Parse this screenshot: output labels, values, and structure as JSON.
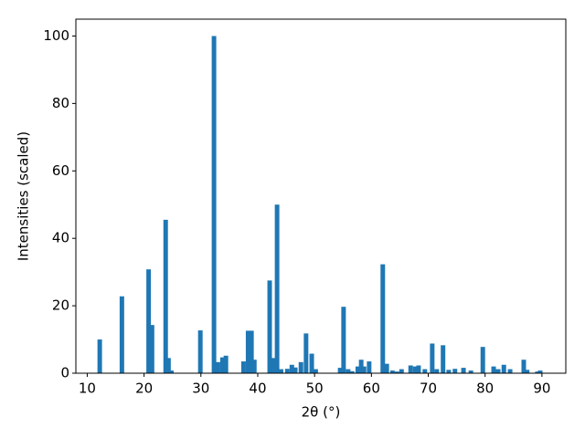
{
  "chart_data": {
    "type": "bar",
    "xlabel": "2θ (°)",
    "ylabel": "Intensities (scaled)",
    "color": "#1f77b4",
    "x": [
      12.2,
      16.1,
      20.8,
      21.4,
      23.8,
      24.3,
      24.8,
      29.9,
      32.3,
      33.0,
      33.8,
      34.4,
      37.5,
      38.3,
      38.9,
      39.4,
      42.1,
      42.8,
      43.4,
      44.1,
      45.2,
      46.0,
      46.6,
      47.6,
      48.5,
      49.5,
      50.2,
      54.5,
      55.1,
      55.9,
      56.6,
      57.6,
      58.2,
      58.7,
      59.6,
      62.0,
      62.7,
      63.7,
      64.5,
      65.3,
      66.9,
      67.7,
      68.3,
      69.4,
      70.7,
      71.5,
      72.6,
      73.6,
      74.7,
      76.2,
      77.5,
      79.6,
      81.5,
      82.3,
      83.3,
      84.4,
      86.8,
      87.4,
      89.2,
      89.7
    ],
    "values": [
      10,
      22.8,
      30.8,
      14.3,
      45.5,
      4.5,
      0.8,
      12.7,
      100,
      3.3,
      4.7,
      5.2,
      3.5,
      12.6,
      12.6,
      4.0,
      27.5,
      4.5,
      50,
      1.2,
      1.3,
      2.5,
      1.7,
      3.3,
      11.8,
      5.8,
      1.2,
      1.6,
      19.7,
      1.2,
      0.6,
      2.0,
      4.0,
      2.0,
      3.5,
      32.3,
      2.8,
      0.8,
      0.5,
      1.2,
      2.3,
      2.0,
      2.3,
      1.2,
      8.8,
      1.2,
      8.3,
      1.0,
      1.3,
      1.6,
      0.8,
      7.8,
      2.0,
      1.2,
      2.5,
      1.2,
      4.0,
      1.0,
      0.5,
      0.8
    ],
    "xlim": [
      8,
      94.2
    ],
    "ylim": [
      0,
      105
    ],
    "xticks": [
      10,
      20,
      30,
      40,
      50,
      60,
      70,
      80,
      90
    ],
    "yticks": [
      0,
      20,
      40,
      60,
      80,
      100
    ]
  }
}
